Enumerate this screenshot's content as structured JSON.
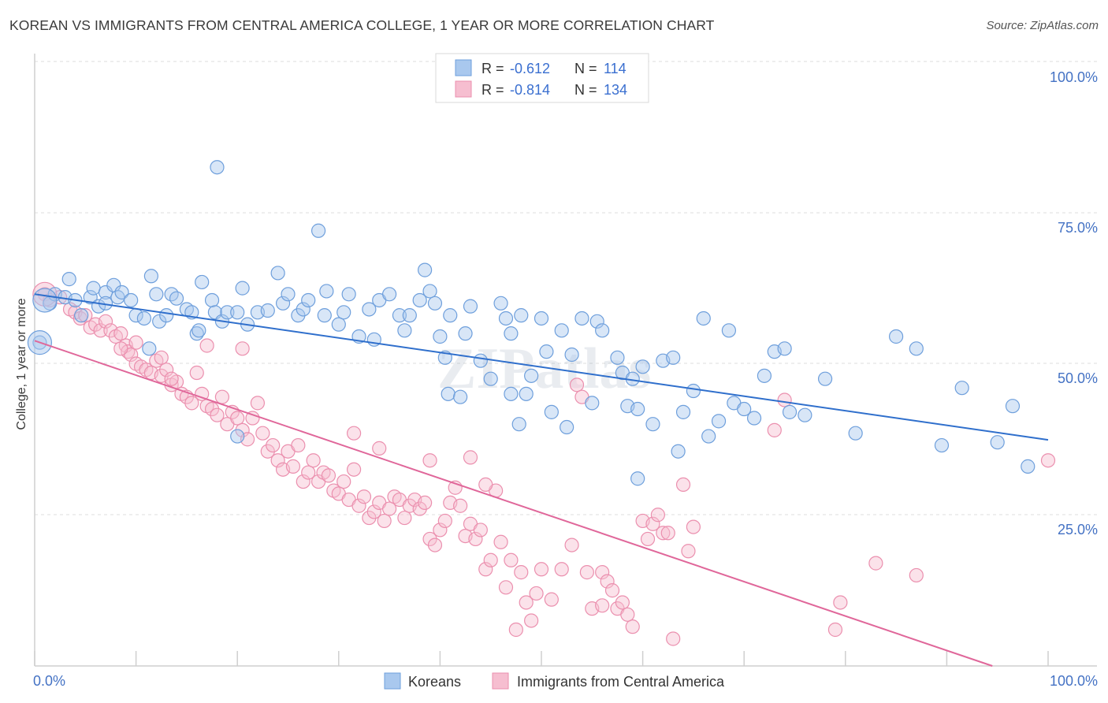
{
  "title": "KOREAN VS IMMIGRANTS FROM CENTRAL AMERICA COLLEGE, 1 YEAR OR MORE CORRELATION CHART",
  "source": "Source: ZipAtlas.com",
  "watermark": "ZIPatlas",
  "colors": {
    "blue_fill": "#a9c8ee",
    "blue_stroke": "#6e9fdc",
    "blue_line": "#2f6fcc",
    "pink_fill": "#f6bed0",
    "pink_stroke": "#eb8fae",
    "pink_line": "#e0679a",
    "tick_text": "#4472c4",
    "grid": "#dcdcdc"
  },
  "legend": {
    "rows": [
      {
        "r_label": "R =",
        "r_value": "-0.612",
        "n_label": "N =",
        "n_value": "114"
      },
      {
        "r_label": "R =",
        "r_value": "-0.814",
        "n_label": "N =",
        "n_value": "134"
      }
    ]
  },
  "bottom_legend": [
    "Koreans",
    "Immigrants from Central America"
  ],
  "chart_data": {
    "type": "scatter",
    "title": "KOREAN VS IMMIGRANTS FROM CENTRAL AMERICA COLLEGE, 1 YEAR OR MORE CORRELATION CHART",
    "xlabel": "",
    "ylabel": "College, 1 year or more",
    "xlim": [
      0,
      100
    ],
    "ylim": [
      0,
      100
    ],
    "x_tick_labels": [
      "0.0%",
      "100.0%"
    ],
    "y_tick_labels": [
      "100.0%",
      "75.0%",
      "50.0%",
      "25.0%"
    ],
    "y_tick_values": [
      100,
      75,
      50,
      25
    ],
    "series": [
      {
        "name": "Koreans",
        "r": -0.612,
        "n": 114,
        "trend": {
          "x": [
            0,
            100
          ],
          "y": [
            61.5,
            37.4
          ]
        },
        "points": [
          [
            0.5,
            53.5
          ],
          [
            1.5,
            60.0
          ],
          [
            2,
            61.5
          ],
          [
            3,
            61.0
          ],
          [
            3.4,
            64.0
          ],
          [
            4,
            60.5
          ],
          [
            4.6,
            58.0
          ],
          [
            5.5,
            61.0
          ],
          [
            6.3,
            59.5
          ],
          [
            5.8,
            62.5
          ],
          [
            7,
            61.8
          ],
          [
            7,
            60.0
          ],
          [
            7.8,
            63.0
          ],
          [
            8.2,
            61.0
          ],
          [
            8.6,
            61.8
          ],
          [
            9.5,
            60.5
          ],
          [
            10,
            58.0
          ],
          [
            10.8,
            57.5
          ],
          [
            11.3,
            52.5
          ],
          [
            11.5,
            64.5
          ],
          [
            12,
            61.5
          ],
          [
            12.3,
            57.0
          ],
          [
            13,
            58.0
          ],
          [
            13.5,
            61.5
          ],
          [
            14,
            60.8
          ],
          [
            15,
            59.0
          ],
          [
            15.5,
            58.5
          ],
          [
            16,
            55.0
          ],
          [
            16.2,
            55.5
          ],
          [
            17.5,
            60.5
          ],
          [
            17.8,
            58.5
          ],
          [
            18.5,
            57.0
          ],
          [
            19,
            58.5
          ],
          [
            20,
            58.5
          ],
          [
            20.5,
            62.5
          ],
          [
            21,
            56.5
          ],
          [
            22,
            58.5
          ],
          [
            23,
            58.8
          ],
          [
            24,
            65.0
          ],
          [
            24.5,
            60.0
          ],
          [
            25,
            61.5
          ],
          [
            26,
            58.0
          ],
          [
            26.5,
            59.0
          ],
          [
            27,
            60.5
          ],
          [
            28,
            72.0
          ],
          [
            28.6,
            58.0
          ],
          [
            28.8,
            62.0
          ],
          [
            30,
            56.5
          ],
          [
            30.5,
            58.5
          ],
          [
            31,
            61.5
          ],
          [
            32,
            54.5
          ],
          [
            33,
            59.0
          ],
          [
            33.5,
            54.0
          ],
          [
            34,
            60.5
          ],
          [
            35,
            61.5
          ],
          [
            36,
            58.0
          ],
          [
            36.5,
            55.5
          ],
          [
            37,
            58.0
          ],
          [
            38,
            60.5
          ],
          [
            39,
            62.0
          ],
          [
            39.5,
            60.0
          ],
          [
            40,
            54.5
          ],
          [
            40.5,
            51.0
          ],
          [
            40.8,
            45.0
          ],
          [
            41,
            58.0
          ],
          [
            42,
            44.5
          ],
          [
            42.5,
            55.0
          ],
          [
            43,
            59.5
          ],
          [
            44,
            50.5
          ],
          [
            45,
            47.5
          ],
          [
            46,
            60.0
          ],
          [
            46.5,
            57.5
          ],
          [
            47,
            55.0
          ],
          [
            47.8,
            40.0
          ],
          [
            48,
            58.0
          ],
          [
            48.5,
            45.0
          ],
          [
            49,
            48.0
          ],
          [
            50,
            57.5
          ],
          [
            50.5,
            52.0
          ],
          [
            51,
            42.0
          ],
          [
            52,
            55.5
          ],
          [
            53,
            51.5
          ],
          [
            54,
            57.5
          ],
          [
            55,
            43.5
          ],
          [
            55.5,
            57.0
          ],
          [
            56,
            55.5
          ],
          [
            57.5,
            51.0
          ],
          [
            58,
            48.5
          ],
          [
            58.5,
            43.0
          ],
          [
            59,
            47.5
          ],
          [
            59.5,
            42.5
          ],
          [
            60,
            49.5
          ],
          [
            61,
            40.0
          ],
          [
            62,
            50.5
          ],
          [
            63,
            51.0
          ],
          [
            64,
            42.0
          ],
          [
            65,
            45.5
          ],
          [
            66,
            57.5
          ],
          [
            66.5,
            38.0
          ],
          [
            67.5,
            40.5
          ],
          [
            68.5,
            55.5
          ],
          [
            69,
            43.5
          ],
          [
            70,
            42.5
          ],
          [
            71,
            41.0
          ],
          [
            72,
            48.0
          ],
          [
            73,
            52.0
          ],
          [
            74,
            52.5
          ],
          [
            74.5,
            42.0
          ],
          [
            76,
            41.5
          ],
          [
            78,
            47.5
          ],
          [
            81,
            38.5
          ],
          [
            85,
            54.5
          ],
          [
            87,
            52.5
          ],
          [
            89.5,
            36.5
          ],
          [
            91.5,
            46.0
          ],
          [
            95,
            37.0
          ],
          [
            98,
            33.0
          ],
          [
            96.5,
            43.0
          ],
          [
            52.5,
            39.5
          ],
          [
            38.5,
            65.5
          ],
          [
            47,
            45.0
          ],
          [
            59.5,
            31.0
          ],
          [
            63.5,
            35.5
          ],
          [
            18,
            82.5
          ],
          [
            16.5,
            63.5
          ],
          [
            20,
            38.0
          ]
        ],
        "large_points": [
          [
            0.5,
            53.5
          ],
          [
            1,
            60.5
          ]
        ]
      },
      {
        "name": "Immigrants from Central America",
        "r": -0.814,
        "n": 134,
        "trend": {
          "x": [
            0,
            94.5
          ],
          "y": [
            53.8,
            0
          ]
        },
        "points": [
          [
            1,
            61.5
          ],
          [
            1.5,
            60.5
          ],
          [
            2.5,
            61.0
          ],
          [
            3.5,
            59.0
          ],
          [
            4,
            58.5
          ],
          [
            4.5,
            57.5
          ],
          [
            5.5,
            56.0
          ],
          [
            6,
            56.5
          ],
          [
            6.5,
            55.5
          ],
          [
            7,
            57.0
          ],
          [
            7.5,
            55.5
          ],
          [
            8,
            54.5
          ],
          [
            8.5,
            55.0
          ],
          [
            9,
            53.0
          ],
          [
            9.2,
            52.0
          ],
          [
            9.5,
            51.5
          ],
          [
            10,
            50.0
          ],
          [
            10.5,
            49.5
          ],
          [
            11,
            49.0
          ],
          [
            11.5,
            48.5
          ],
          [
            12,
            50.5
          ],
          [
            12.5,
            48.0
          ],
          [
            13,
            49.0
          ],
          [
            13.5,
            46.5
          ],
          [
            14,
            47.0
          ],
          [
            14.5,
            45.0
          ],
          [
            15,
            44.5
          ],
          [
            15.5,
            43.5
          ],
          [
            16,
            48.5
          ],
          [
            16.5,
            45.0
          ],
          [
            17,
            43.0
          ],
          [
            17.5,
            42.5
          ],
          [
            18,
            41.5
          ],
          [
            18.5,
            44.5
          ],
          [
            19,
            40.0
          ],
          [
            19.5,
            42.0
          ],
          [
            20,
            41.0
          ],
          [
            20.5,
            39.0
          ],
          [
            21,
            37.5
          ],
          [
            21.5,
            41.0
          ],
          [
            22,
            43.5
          ],
          [
            22.5,
            38.5
          ],
          [
            23,
            35.5
          ],
          [
            23.5,
            36.5
          ],
          [
            24,
            34.0
          ],
          [
            24.5,
            32.5
          ],
          [
            25,
            35.5
          ],
          [
            25.5,
            33.0
          ],
          [
            26,
            36.5
          ],
          [
            26.5,
            30.5
          ],
          [
            27,
            32.0
          ],
          [
            27.5,
            34.0
          ],
          [
            28,
            30.5
          ],
          [
            28.5,
            32.0
          ],
          [
            29,
            31.5
          ],
          [
            29.5,
            29.0
          ],
          [
            30,
            28.5
          ],
          [
            30.5,
            30.5
          ],
          [
            31,
            27.5
          ],
          [
            31.5,
            32.5
          ],
          [
            32,
            26.5
          ],
          [
            32.5,
            28.0
          ],
          [
            33,
            24.5
          ],
          [
            33.5,
            25.5
          ],
          [
            34,
            27.0
          ],
          [
            34.5,
            24.0
          ],
          [
            35,
            26.0
          ],
          [
            35.5,
            28.0
          ],
          [
            36,
            27.5
          ],
          [
            36.5,
            24.5
          ],
          [
            37,
            26.5
          ],
          [
            37.5,
            27.5
          ],
          [
            38,
            26.0
          ],
          [
            38.5,
            27.0
          ],
          [
            39,
            21.0
          ],
          [
            39.5,
            20.0
          ],
          [
            40,
            22.5
          ],
          [
            40.5,
            24.0
          ],
          [
            41,
            27.0
          ],
          [
            41.5,
            29.5
          ],
          [
            42,
            26.5
          ],
          [
            42.5,
            21.5
          ],
          [
            43,
            23.5
          ],
          [
            43.5,
            21.0
          ],
          [
            44,
            22.5
          ],
          [
            44.5,
            16.0
          ],
          [
            45,
            17.5
          ],
          [
            45.5,
            29.0
          ],
          [
            46,
            20.5
          ],
          [
            46.5,
            13.0
          ],
          [
            47,
            17.5
          ],
          [
            47.5,
            6.0
          ],
          [
            48,
            15.5
          ],
          [
            48.5,
            10.5
          ],
          [
            49,
            7.5
          ],
          [
            49.5,
            12.0
          ],
          [
            50,
            16.0
          ],
          [
            51,
            11.0
          ],
          [
            52,
            16.0
          ],
          [
            53,
            20.0
          ],
          [
            53.5,
            46.5
          ],
          [
            54,
            44.5
          ],
          [
            54.5,
            15.5
          ],
          [
            55,
            9.5
          ],
          [
            56,
            15.5
          ],
          [
            56.5,
            14.0
          ],
          [
            57,
            12.5
          ],
          [
            57.5,
            9.5
          ],
          [
            58,
            10.5
          ],
          [
            59,
            6.5
          ],
          [
            60,
            24.0
          ],
          [
            60.5,
            21.0
          ],
          [
            61,
            23.5
          ],
          [
            61.5,
            25.0
          ],
          [
            62,
            22.0
          ],
          [
            62.5,
            22.0
          ],
          [
            63,
            4.5
          ],
          [
            64,
            30.0
          ],
          [
            64.5,
            19.0
          ],
          [
            65,
            23.0
          ],
          [
            73,
            39.0
          ],
          [
            74,
            44.0
          ],
          [
            79,
            6.0
          ],
          [
            79.5,
            10.5
          ],
          [
            83,
            17.0
          ],
          [
            87,
            15.0
          ],
          [
            100,
            34.0
          ],
          [
            17,
            53.0
          ],
          [
            20.5,
            52.5
          ],
          [
            13.5,
            47.5
          ],
          [
            5,
            58.0
          ],
          [
            8.5,
            52.5
          ],
          [
            10,
            53.5
          ],
          [
            43,
            34.5
          ],
          [
            44.5,
            30.0
          ],
          [
            56,
            10.0
          ],
          [
            58.5,
            8.5
          ],
          [
            31.5,
            38.5
          ],
          [
            34,
            36.0
          ],
          [
            39,
            34.0
          ],
          [
            12.5,
            51.0
          ]
        ],
        "large_points": [
          [
            1,
            61.5
          ]
        ]
      }
    ]
  }
}
